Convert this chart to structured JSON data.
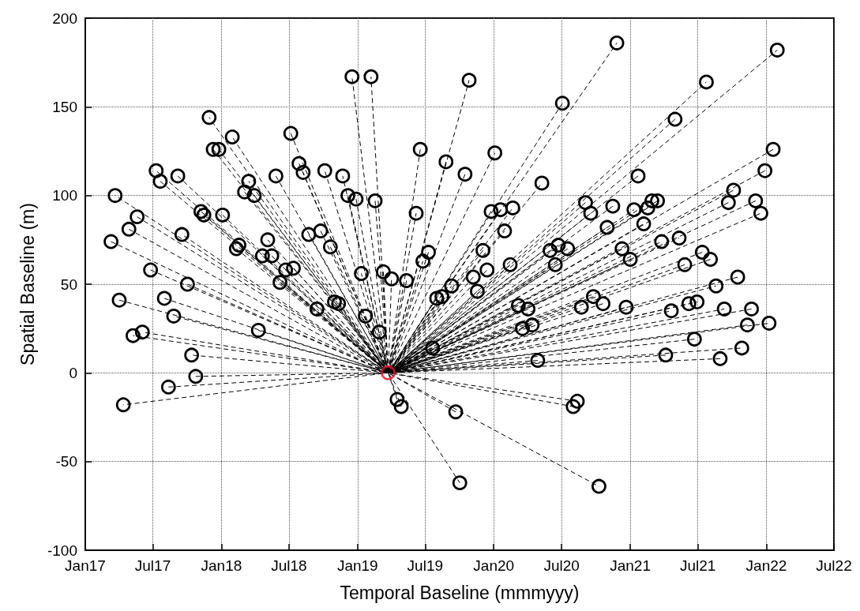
{
  "chart_data": {
    "type": "line",
    "xlabel": "Temporal Baseline (mmmyyy)",
    "ylabel": "Spatial Baseline (m)",
    "xlim": [
      "2017-01-01",
      "2022-07-01"
    ],
    "xticks": [
      {
        "value": "2017-01",
        "label": "Jan17"
      },
      {
        "value": "2017-07",
        "label": "Jul17"
      },
      {
        "value": "2018-01",
        "label": "Jan18"
      },
      {
        "value": "2018-07",
        "label": "Jul18"
      },
      {
        "value": "2019-01",
        "label": "Jan19"
      },
      {
        "value": "2019-07",
        "label": "Jul19"
      },
      {
        "value": "2020-01",
        "label": "Jan20"
      },
      {
        "value": "2020-07",
        "label": "Jul20"
      },
      {
        "value": "2021-01",
        "label": "Jan21"
      },
      {
        "value": "2021-07",
        "label": "Jul21"
      },
      {
        "value": "2022-01",
        "label": "Jan22"
      },
      {
        "value": "2022-07",
        "label": "Jul22"
      }
    ],
    "ylim": [
      -100,
      200
    ],
    "yticks": [
      -100,
      -50,
      0,
      50,
      100,
      150,
      200
    ],
    "grid": true,
    "series": [
      {
        "color": "#000000",
        "line_style": "dashed",
        "marker": "circle",
        "x": [
          "2017-03-11",
          "2019-03-24",
          "2017-03-22",
          null,
          "2017-04-02",
          "2019-03-24",
          "2017-04-13",
          null,
          "2017-04-28",
          "2019-03-24",
          "2017-05-09",
          null,
          "2017-05-20",
          "2019-03-24",
          "2017-06-03",
          null,
          "2017-06-25",
          "2019-03-24",
          "2017-07-10",
          null,
          "2017-07-21",
          "2019-03-24",
          "2017-08-01",
          null,
          "2017-08-12",
          "2019-03-24",
          "2017-08-26",
          null,
          "2017-09-06",
          "2019-03-24",
          "2017-09-17",
          null,
          "2017-10-02",
          "2019-03-24",
          "2017-10-13",
          null,
          "2017-10-24",
          "2019-03-24",
          "2017-11-07",
          null,
          "2017-11-15",
          "2019-03-24",
          "2017-11-29",
          null,
          "2017-12-10",
          "2019-03-24",
          "2017-12-25",
          null,
          "2018-01-04",
          "2019-03-24",
          "2018-01-30",
          null,
          "2018-02-10",
          "2019-03-24",
          "2018-02-17",
          null,
          "2018-03-04",
          "2019-03-24",
          "2018-03-15",
          null,
          "2018-03-30",
          "2019-03-24",
          "2018-04-10",
          null,
          "2018-04-21",
          "2019-03-24",
          "2018-05-05",
          null,
          "2018-05-16",
          "2019-03-24",
          "2018-05-27",
          null,
          "2018-06-07",
          "2019-03-24",
          "2018-06-22",
          null,
          "2018-07-06",
          "2019-03-24",
          "2018-07-13",
          null,
          "2018-07-28",
          "2019-03-24",
          "2018-08-08",
          null,
          "2018-08-23",
          "2019-03-24",
          "2018-09-14",
          null,
          "2018-09-24",
          "2019-03-24",
          "2018-10-05",
          null,
          "2018-10-20",
          "2019-03-24",
          "2018-10-31",
          null,
          "2018-11-11",
          "2019-03-24",
          "2018-11-22",
          null,
          "2018-12-06",
          "2019-03-24",
          "2018-12-17",
          null,
          "2018-12-28",
          "2019-03-24",
          "2019-01-11",
          null,
          "2019-01-22",
          "2019-03-24",
          "2019-02-06",
          null,
          "2019-02-17",
          "2019-03-24",
          "2019-02-28",
          null,
          "2019-03-11",
          "2019-03-24",
          "2019-04-02",
          null,
          "2019-04-17",
          "2019-03-24",
          "2019-04-28",
          null,
          "2019-05-12",
          "2019-03-24",
          "2019-06-07",
          null,
          "2019-06-18",
          "2019-03-24",
          "2019-06-25",
          null,
          "2019-07-10",
          "2019-03-24",
          "2019-07-21",
          null,
          "2019-08-01",
          "2019-03-24",
          "2019-08-15",
          null,
          "2019-08-26",
          "2019-03-24",
          "2019-09-10",
          null,
          "2019-09-21",
          "2019-03-24",
          "2019-10-02",
          null,
          "2019-10-16",
          "2019-03-24",
          "2019-10-27",
          null,
          "2019-11-07",
          "2019-03-24",
          "2019-11-18",
          null,
          "2019-12-03",
          "2019-03-24",
          "2019-12-14",
          null,
          "2019-12-25",
          "2019-03-24",
          "2020-01-04",
          null,
          "2020-01-19",
          "2019-03-24",
          "2020-01-30",
          null,
          "2020-02-14",
          "2019-03-24",
          "2020-02-21",
          null,
          "2020-03-07",
          "2019-03-24",
          "2020-03-18",
          null,
          "2020-04-02",
          "2019-03-24",
          "2020-04-13",
          null,
          "2020-04-28",
          "2019-03-24",
          "2020-05-09",
          null,
          "2020-05-31",
          "2019-03-24",
          "2020-06-14",
          null,
          "2020-06-22",
          "2019-03-24",
          "2020-07-03",
          null,
          "2020-07-17",
          "2019-03-24",
          "2020-08-01",
          null,
          "2020-08-12",
          "2019-03-24",
          "2020-08-23",
          null,
          "2020-09-03",
          "2019-03-24",
          "2020-09-17",
          null,
          "2020-09-24",
          "2019-03-24",
          "2020-10-09",
          null,
          "2020-10-20",
          "2019-03-24",
          "2020-10-31",
          null,
          "2020-11-15",
          "2019-03-24",
          "2020-11-26",
          null,
          "2020-12-10",
          "2019-03-24",
          "2020-12-21",
          null,
          "2021-01-01",
          "2019-03-24",
          "2021-01-11",
          null,
          "2021-01-22",
          "2019-03-24",
          "2021-02-06",
          null,
          "2021-02-17",
          "2019-03-24",
          "2021-02-28",
          null,
          "2021-03-15",
          "2019-03-24",
          "2021-03-26",
          null,
          "2021-04-06",
          "2019-03-24",
          "2021-04-21",
          null,
          "2021-05-01",
          "2019-03-24",
          "2021-05-12",
          null,
          "2021-05-27",
          "2019-03-24",
          "2021-06-07",
          null,
          "2021-06-22",
          "2019-03-24",
          "2021-06-29",
          null,
          "2021-07-13",
          "2019-03-24",
          "2021-07-24",
          null,
          "2021-08-04",
          "2019-03-24",
          "2021-08-19",
          null,
          "2021-08-30",
          "2019-03-24",
          "2021-09-10",
          null,
          "2021-09-21",
          "2019-03-24",
          "2021-10-05",
          null,
          "2021-10-16",
          "2019-03-24",
          "2021-10-27",
          null,
          "2021-11-11",
          "2019-03-24",
          "2021-11-22",
          null,
          "2021-12-03",
          "2019-03-24",
          "2021-12-17",
          null,
          "2021-12-28",
          "2019-03-24",
          "2022-01-08",
          null,
          "2022-01-19",
          "2019-03-24",
          "2022-01-30"
        ],
        "values": [
          74,
          0,
          100,
          null,
          41,
          0,
          -18,
          null,
          81,
          0,
          21,
          null,
          88,
          0,
          23,
          null,
          58,
          0,
          114,
          null,
          108,
          0,
          42,
          null,
          -8,
          0,
          32,
          null,
          111,
          0,
          78,
          null,
          50,
          0,
          10,
          null,
          -2,
          0,
          91,
          null,
          89,
          0,
          144,
          null,
          126,
          0,
          126,
          null,
          89,
          0,
          133,
          null,
          70,
          0,
          72,
          null,
          102,
          0,
          108,
          null,
          100,
          0,
          24,
          null,
          66,
          0,
          75,
          null,
          66,
          0,
          111,
          null,
          51,
          0,
          58,
          null,
          135,
          0,
          59,
          null,
          118,
          0,
          113,
          null,
          78,
          0,
          36,
          null,
          80,
          0,
          114,
          null,
          71,
          0,
          40,
          null,
          39,
          0,
          111,
          null,
          100,
          0,
          167,
          null,
          98,
          0,
          56,
          null,
          32,
          0,
          167,
          null,
          97,
          0,
          23,
          null,
          57,
          0,
          53,
          null,
          -15,
          0,
          -19,
          null,
          52,
          0,
          90,
          null,
          126,
          0,
          63,
          null,
          68,
          0,
          14,
          null,
          42,
          0,
          43,
          null,
          119,
          0,
          49,
          null,
          -22,
          0,
          -62,
          null,
          112,
          0,
          165,
          null,
          54,
          0,
          46,
          null,
          69,
          0,
          58,
          null,
          91,
          0,
          124,
          null,
          92,
          0,
          80,
          null,
          61,
          0,
          93,
          null,
          38,
          0,
          25,
          null,
          36,
          0,
          27,
          null,
          7,
          0,
          107,
          null,
          69,
          0,
          61,
          null,
          72,
          0,
          152,
          null,
          70,
          0,
          -19,
          null,
          -16,
          0,
          37,
          null,
          96,
          0,
          90,
          null,
          43,
          0,
          -64,
          null,
          39,
          0,
          82,
          null,
          94,
          0,
          186,
          null,
          70,
          0,
          37,
          null,
          64,
          0,
          92,
          null,
          111,
          0,
          84,
          null,
          93,
          0,
          97,
          null,
          97,
          0,
          74,
          null,
          10,
          0,
          35,
          null,
          143,
          0,
          76,
          null,
          61,
          0,
          39,
          null,
          19,
          0,
          40,
          null,
          68,
          0,
          164,
          null,
          64,
          0,
          49,
          null,
          8,
          0,
          36,
          null,
          96,
          0,
          103,
          null,
          54,
          0,
          14,
          null,
          27,
          0,
          36,
          null,
          97,
          0,
          90,
          null,
          114,
          0,
          28,
          null,
          126,
          0,
          182
        ]
      },
      {
        "type": "scatter",
        "color": "#e8112d",
        "marker": "circle",
        "x": [
          "2019-03-24"
        ],
        "values": [
          0
        ]
      }
    ]
  }
}
